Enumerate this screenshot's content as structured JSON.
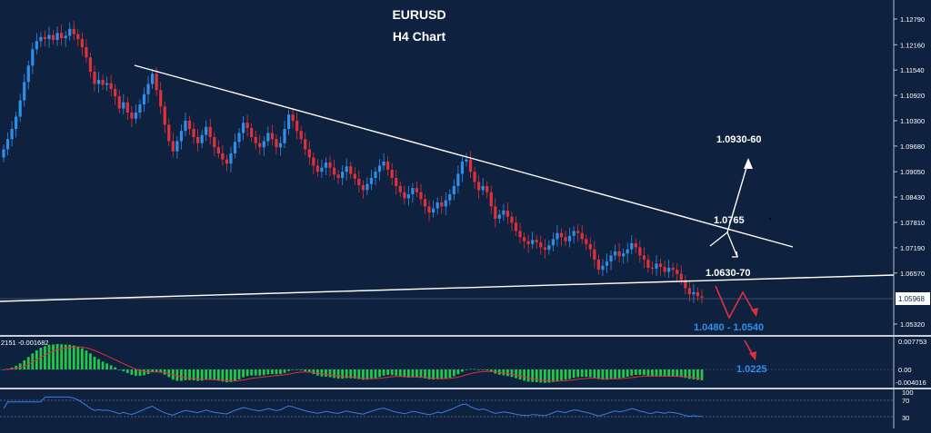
{
  "chart_data": {
    "type": "candlestick",
    "title": "EURUSD",
    "subtitle": "H4 Chart",
    "price_axis": {
      "ticks": [
        "1.12790",
        "1.12160",
        "1.11540",
        "1.10920",
        "1.10300",
        "1.09680",
        "1.09050",
        "1.08430",
        "1.07810",
        "1.07190",
        "1.06570",
        "1.05968",
        "1.05320"
      ],
      "range": [
        1.05,
        1.13
      ],
      "current_price": "1.05968"
    },
    "price_series_closes": [
      1.096,
      1.0985,
      1.101,
      1.104,
      1.108,
      1.1125,
      1.1165,
      1.1205,
      1.1225,
      1.1235,
      1.123,
      1.124,
      1.1228,
      1.1245,
      1.1232,
      1.1238,
      1.1255,
      1.1242,
      1.123,
      1.121,
      1.1185,
      1.115,
      1.112,
      1.113,
      1.1118,
      1.1122,
      1.1108,
      1.109,
      1.106,
      1.1075,
      1.105,
      1.1035,
      1.105,
      1.107,
      1.1095,
      1.112,
      1.1145,
      1.1105,
      1.1065,
      1.102,
      1.098,
      1.0955,
      1.098,
      1.1005,
      1.103,
      1.101,
      1.099,
      1.0975,
      1.0995,
      1.1015,
      1.099,
      1.0965,
      1.095,
      1.0935,
      1.0925,
      1.095,
      1.0978,
      1.1,
      1.1025,
      1.1012,
      1.099,
      1.0975,
      1.0965,
      1.098,
      1.1,
      1.0985,
      1.0965,
      1.0975,
      1.101,
      1.1045,
      1.103,
      1.1005,
      1.0985,
      1.096,
      1.094,
      1.092,
      1.0905,
      1.0915,
      1.0928,
      1.0915,
      1.0898,
      1.089,
      1.0905,
      1.0918,
      1.09,
      1.0888,
      1.0872,
      1.086,
      1.0875,
      1.089,
      1.0905,
      1.092,
      1.093,
      1.091,
      1.089,
      1.087,
      1.0855,
      1.084,
      1.085,
      1.0865,
      1.0855,
      1.0838,
      1.082,
      1.0805,
      1.0815,
      1.083,
      1.082,
      1.0835,
      1.085,
      1.087,
      1.09,
      1.093,
      1.0935,
      1.0905,
      1.088,
      1.086,
      1.087,
      1.0855,
      1.082,
      1.079,
      1.08,
      1.081,
      1.0795,
      1.078,
      1.076,
      1.0745,
      1.0735,
      1.0728,
      1.0738,
      1.0732,
      1.072,
      1.0714,
      1.0725,
      1.074,
      1.0755,
      1.0745,
      1.0735,
      1.0748,
      1.076,
      1.0755,
      1.074,
      1.0728,
      1.0715,
      1.069,
      1.0665,
      1.0675,
      1.0685,
      1.07,
      1.071,
      1.0698,
      1.0705,
      1.0715,
      1.073,
      1.072,
      1.07,
      1.069,
      1.067,
      1.0668,
      1.068,
      1.0672,
      1.066,
      1.067,
      1.0665,
      1.0655,
      1.064,
      1.062,
      1.0605,
      1.061,
      1.06,
      1.0597
    ],
    "annotations": [
      {
        "label": "1.0930-60",
        "color": "#ffffff"
      },
      {
        "label": "1.0765",
        "color": "#ffffff"
      },
      {
        "label": "1.0630-70",
        "color": "#ffffff"
      },
      {
        "label": "1.0480 - 1.0540",
        "color": "#2f8fe8"
      },
      {
        "label": "1.0225",
        "color": "#2f8fe8"
      }
    ],
    "macd": {
      "header": "2151 -0.001682",
      "ticks": [
        "0.007753",
        "0.00",
        "-0.004016"
      ]
    },
    "rsi": {
      "ticks": [
        "100",
        "70",
        "30"
      ]
    },
    "colors": {
      "background": "#0e2240",
      "bull_candle": "#2f8fe8",
      "bear_candle": "#e0303a",
      "macd_histogram": "#22c84a",
      "macd_signal": "#e0303a",
      "rsi_line": "#3b7be0",
      "trendline": "#ffffff",
      "annotation_blue": "#2f8fe8",
      "arrow_red": "#e0303a"
    }
  }
}
